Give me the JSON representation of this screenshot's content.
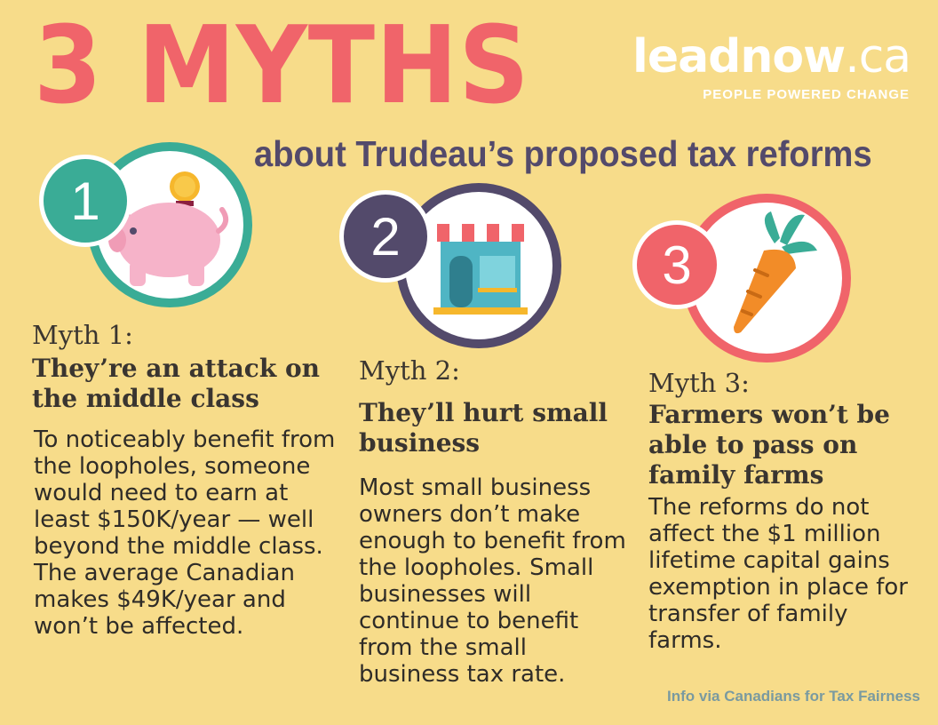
{
  "title": "3 MYTHS",
  "subtitle": "about Trudeau’s proposed tax reforms",
  "logo": {
    "word": "leadnow",
    "suffix": ".ca",
    "tagline": "PEOPLE POWERED CHANGE"
  },
  "colors": {
    "background": "#f7dc8a",
    "title": "#f0646a",
    "subtitle": "#534a6b",
    "teal": "#3aac96",
    "purple": "#534a6b",
    "coral": "#f0646a"
  },
  "myths": [
    {
      "number": "1",
      "icon": "piggy-bank-icon",
      "label": "Myth 1:",
      "heading": "They’re an attack on the middle class",
      "body": "To noticeably benefit from the loopholes, someone would need to earn at least $150K/year — well beyond the middle class. The average Canadian makes $49K/year and won’t be affected."
    },
    {
      "number": "2",
      "icon": "storefront-icon",
      "label": "Myth 2:",
      "heading": "They’ll hurt small business",
      "body": "Most small business owners don’t make enough to benefit from the loopholes. Small businesses will continue to benefit from the small business tax rate."
    },
    {
      "number": "3",
      "icon": "carrot-icon",
      "label": "Myth 3:",
      "heading": "Farmers won’t be able to pass on family farms",
      "body": "The reforms do not affect the $1 million lifetime capital gains exemption in place for transfer of family farms."
    }
  ],
  "credit": "Info via Canadians for Tax Fairness"
}
